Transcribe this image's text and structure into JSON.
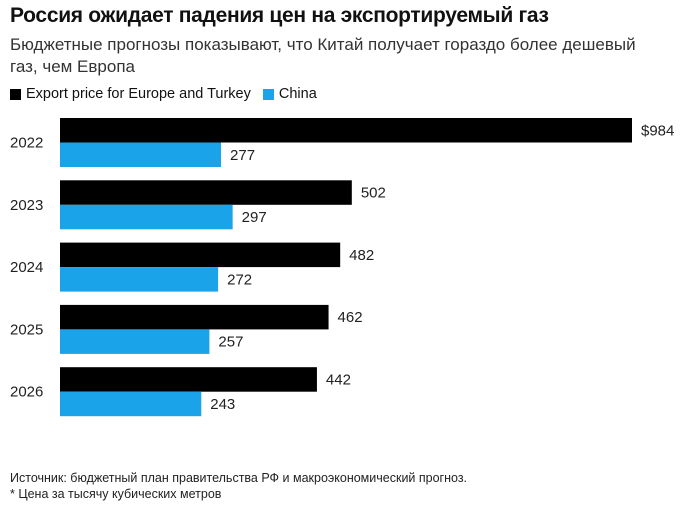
{
  "colors": {
    "europe": "#000000",
    "china": "#1aa3e8"
  },
  "chart_data": {
    "type": "bar",
    "orientation": "horizontal",
    "title": "Россия ожидает падения цен на экспортируемый газ",
    "subtitle": "Бюджетные прогнозы показывают, что Китай получает гораздо более дешевый газ, чем Европа",
    "categories": [
      "2022",
      "2023",
      "2024",
      "2025",
      "2026"
    ],
    "series": [
      {
        "name": "Export price for Europe and Turkey",
        "values": [
          984,
          502,
          482,
          462,
          442
        ],
        "labels": [
          "$984",
          "502",
          "482",
          "462",
          "442"
        ]
      },
      {
        "name": "China",
        "values": [
          277,
          297,
          272,
          257,
          243
        ],
        "labels": [
          "277",
          "297",
          "272",
          "257",
          "243"
        ]
      }
    ],
    "xlim": [
      0,
      984
    ],
    "grid": false,
    "legend_position": "top-left",
    "source": "Источник: бюджетный план правительства РФ и макроэкономический прогноз.",
    "note": "* Цена за тысячу кубических метров"
  }
}
